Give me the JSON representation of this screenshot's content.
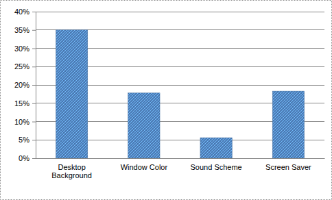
{
  "chart_data": {
    "type": "bar",
    "categories": [
      "Desktop Background",
      "Window Color",
      "Sound Scheme",
      "Screen Saver"
    ],
    "values": [
      35,
      17.8,
      5.6,
      18.3
    ],
    "color": "#4f81bd",
    "ylim": [
      0,
      40
    ],
    "yticks": [
      {
        "value": 0,
        "label": "0%"
      },
      {
        "value": 5,
        "label": "5%"
      },
      {
        "value": 10,
        "label": "10%"
      },
      {
        "value": 15,
        "label": "15%"
      },
      {
        "value": 20,
        "label": "20%"
      },
      {
        "value": 25,
        "label": "25%"
      },
      {
        "value": 30,
        "label": "30%"
      },
      {
        "value": 35,
        "label": "35%"
      },
      {
        "value": 40,
        "label": "40%"
      }
    ],
    "grid": true
  }
}
